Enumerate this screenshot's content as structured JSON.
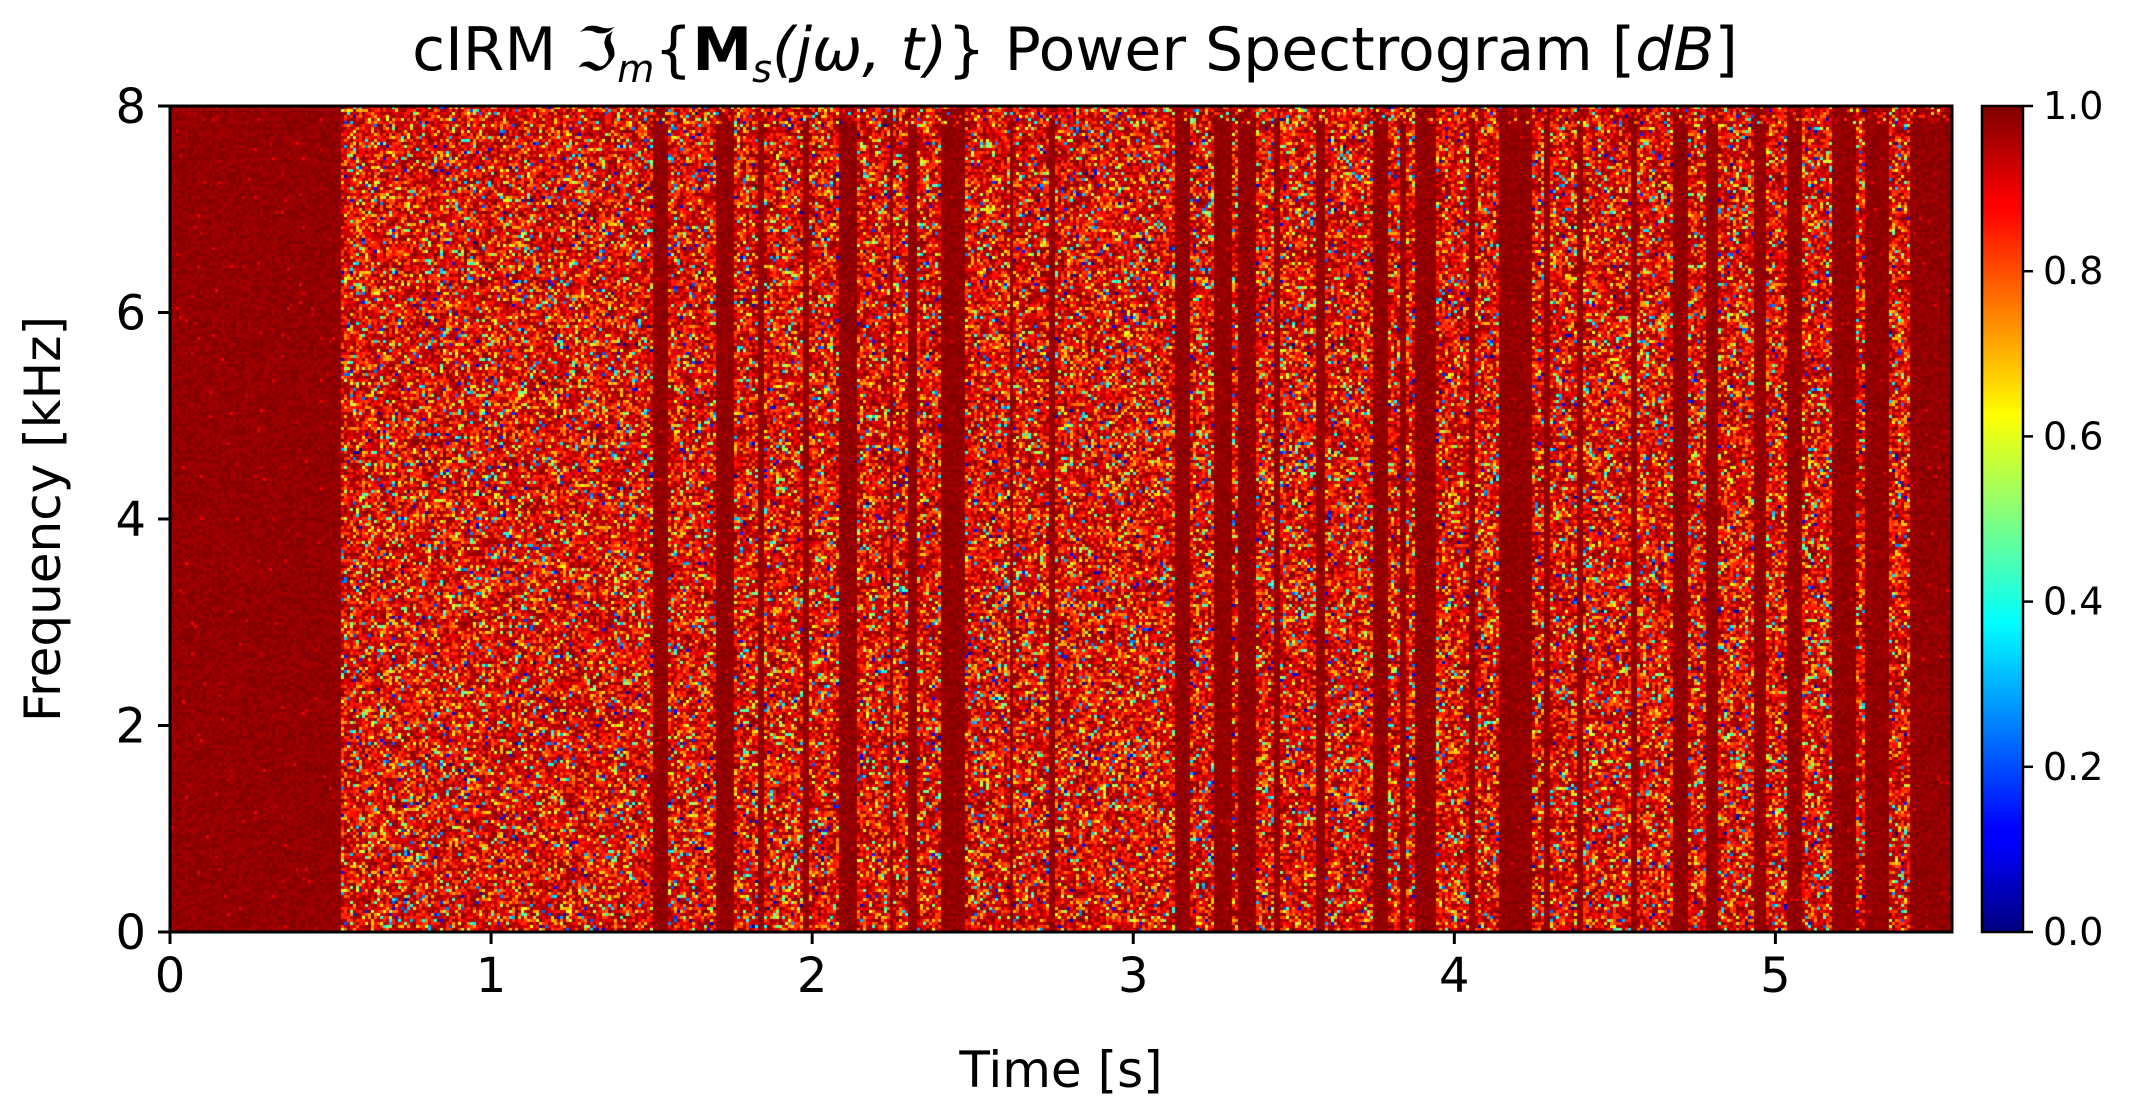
{
  "chart_data": {
    "type": "heatmap",
    "title": {
      "prefix": "cIRM ",
      "operator": "ℑ",
      "operator_sub": "m",
      "open_brace": "{",
      "mask_symbol": "M",
      "mask_sub": "s",
      "args": "(jω, t)",
      "close_brace": "}",
      "suffix": " Power Spectrogram [",
      "unit": "dB",
      "close": "]"
    },
    "xlabel": "Time [s]",
    "ylabel": "Frequency [kHz]",
    "xlim": [
      0,
      5.55
    ],
    "ylim": [
      0,
      8
    ],
    "x_ticks": [
      0,
      1,
      2,
      3,
      4,
      5
    ],
    "x_tick_labels": [
      "0",
      "1",
      "2",
      "3",
      "4",
      "5"
    ],
    "y_ticks": [
      0,
      2,
      4,
      6,
      8
    ],
    "y_tick_labels": [
      "0",
      "2",
      "4",
      "6",
      "8"
    ],
    "colormap": "jet",
    "colorbar": {
      "vmin": 0.0,
      "vmax": 1.0,
      "ticks": [
        0.0,
        0.2,
        0.4,
        0.6,
        0.8,
        1.0
      ],
      "tick_labels": [
        "0.0",
        "0.2",
        "0.4",
        "0.6",
        "0.8",
        "1.0"
      ]
    },
    "background_value": 1.0,
    "noisy_segments_s": [
      [
        0.53,
        0.92
      ],
      [
        0.92,
        1.5
      ],
      [
        1.55,
        1.7
      ],
      [
        1.76,
        1.83
      ],
      [
        1.85,
        1.97
      ],
      [
        1.99,
        2.08
      ],
      [
        2.14,
        2.24
      ],
      [
        2.25,
        2.3
      ],
      [
        2.33,
        2.4
      ],
      [
        2.48,
        2.62
      ],
      [
        2.63,
        2.74
      ],
      [
        2.76,
        3.13
      ],
      [
        3.18,
        3.25
      ],
      [
        3.31,
        3.33
      ],
      [
        3.38,
        3.44
      ],
      [
        3.46,
        3.57
      ],
      [
        3.6,
        3.75
      ],
      [
        3.79,
        3.83
      ],
      [
        3.85,
        3.88
      ],
      [
        3.94,
        4.05
      ],
      [
        4.06,
        4.14
      ],
      [
        4.24,
        4.28
      ],
      [
        4.3,
        4.38
      ],
      [
        4.4,
        4.55
      ],
      [
        4.57,
        4.68
      ],
      [
        4.73,
        4.78
      ],
      [
        4.82,
        4.93
      ],
      [
        4.97,
        5.04
      ],
      [
        5.08,
        5.18
      ],
      [
        5.25,
        5.28
      ],
      [
        5.35,
        5.42
      ]
    ]
  }
}
